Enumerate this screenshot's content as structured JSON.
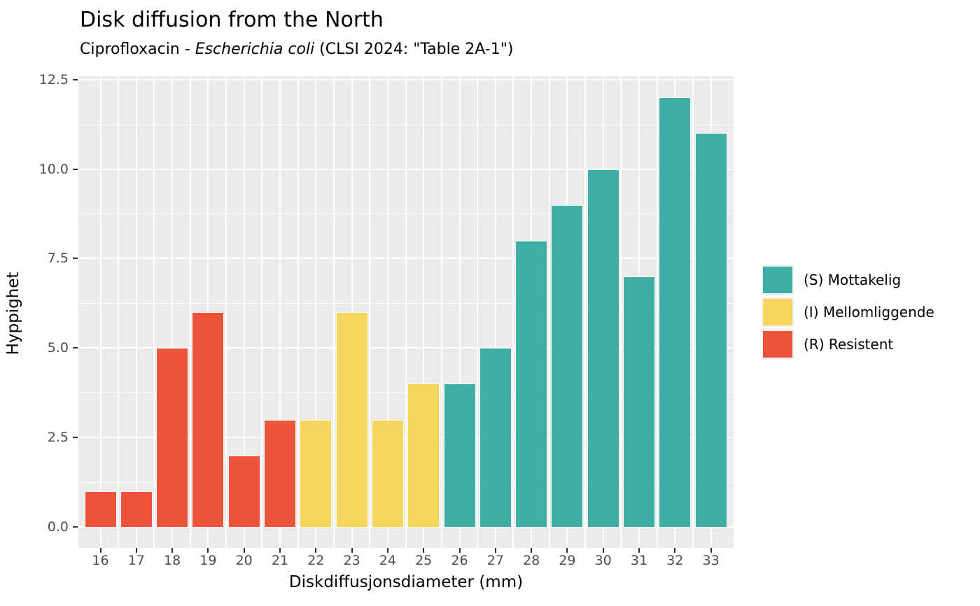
{
  "chart_data": {
    "type": "bar",
    "title": "Disk diffusion from the North",
    "subtitle_prefix": "Ciprofloxacin - ",
    "subtitle_italic": "Escherichia coli",
    "subtitle_suffix": " (CLSI 2024: \"Table 2A-1\")",
    "xlabel": "Diskdiffusjonsdiameter (mm)",
    "ylabel": "Hyppighet",
    "categories": [
      16,
      17,
      18,
      19,
      20,
      21,
      22,
      23,
      24,
      25,
      26,
      27,
      28,
      29,
      30,
      31,
      32,
      33
    ],
    "values": [
      1,
      1,
      5,
      6,
      2,
      3,
      3,
      6,
      3,
      4,
      4,
      5,
      8,
      9,
      10,
      7,
      12,
      11
    ],
    "interpretation": [
      "R",
      "R",
      "R",
      "R",
      "R",
      "R",
      "I",
      "I",
      "I",
      "I",
      "S",
      "S",
      "S",
      "S",
      "S",
      "S",
      "S",
      "S"
    ],
    "ylim": [
      0,
      12.5
    ],
    "y_major_ticks": [
      0,
      2.5,
      5,
      7.5,
      10,
      12.5
    ],
    "y_tick_labels": [
      "0.0",
      "2.5",
      "5.0",
      "7.5",
      "10.0",
      "12.5"
    ],
    "y_minor_ticks": [
      1.25,
      3.75,
      6.25,
      8.75,
      11.25
    ],
    "grid": "on",
    "legend_position": "right",
    "legend": [
      {
        "code": "S",
        "label": "(S) Mottakelig",
        "color": "#3CAEA3"
      },
      {
        "code": "I",
        "label": "(I) Mellomliggende",
        "color": "#F6D55C"
      },
      {
        "code": "R",
        "label": "(R) Resistent",
        "color": "#ED553B"
      }
    ]
  },
  "colors": {
    "susceptible": "#3CAEA3",
    "intermediate": "#F6D55C",
    "resistant": "#ED553B",
    "panel_background": "#EBEBEB",
    "grid_line": "#FFFFFF",
    "tick_mark": "#333333",
    "axis_text": "#4D4D4D",
    "title_text": "#000000",
    "legend_key_background": "#F2F2F2",
    "page_background": "#FFFFFF"
  }
}
